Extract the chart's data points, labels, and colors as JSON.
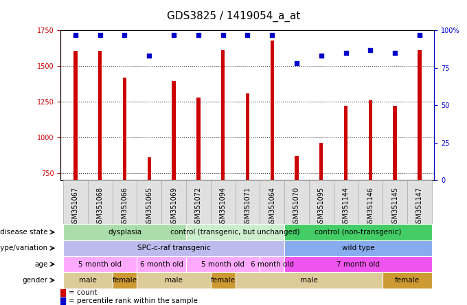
{
  "title": "GDS3825 / 1419054_a_at",
  "samples": [
    "GSM351067",
    "GSM351068",
    "GSM351066",
    "GSM351065",
    "GSM351069",
    "GSM351072",
    "GSM351094",
    "GSM351071",
    "GSM351064",
    "GSM351070",
    "GSM351095",
    "GSM351144",
    "GSM351146",
    "GSM351145",
    "GSM351147"
  ],
  "counts": [
    1608,
    1608,
    1420,
    860,
    1395,
    1280,
    1610,
    1310,
    1680,
    870,
    960,
    1220,
    1260,
    1220,
    1610
  ],
  "percentiles": [
    97,
    97,
    97,
    83,
    97,
    97,
    97,
    97,
    97,
    78,
    83,
    85,
    87,
    85,
    97
  ],
  "ylim_left": [
    700,
    1750
  ],
  "ylim_right": [
    0,
    100
  ],
  "yticks_left": [
    750,
    1000,
    1250,
    1500,
    1750
  ],
  "yticks_right": [
    0,
    25,
    50,
    75,
    100
  ],
  "bar_color": "#cc0000",
  "dot_color": "#0000cc",
  "bar_width": 0.15,
  "annotation_rows": [
    {
      "label": "disease state",
      "segments": [
        {
          "text": "dysplasia",
          "start": 0,
          "end": 5,
          "color": "#aaddaa"
        },
        {
          "text": "control (transgenic, but unchanged)",
          "start": 5,
          "end": 9,
          "color": "#cceecc"
        },
        {
          "text": "control (non-transgenic)",
          "start": 9,
          "end": 15,
          "color": "#44cc66"
        }
      ]
    },
    {
      "label": "genotype/variation",
      "segments": [
        {
          "text": "SPC-c-raf transgenic",
          "start": 0,
          "end": 9,
          "color": "#bbbbee"
        },
        {
          "text": "wild type",
          "start": 9,
          "end": 15,
          "color": "#88aaee"
        }
      ]
    },
    {
      "label": "age",
      "segments": [
        {
          "text": "5 month old",
          "start": 0,
          "end": 3,
          "color": "#ffaaff"
        },
        {
          "text": "6 month old",
          "start": 3,
          "end": 5,
          "color": "#ffaaff"
        },
        {
          "text": "5 month old",
          "start": 5,
          "end": 8,
          "color": "#ffaaff"
        },
        {
          "text": "6 month old",
          "start": 8,
          "end": 9,
          "color": "#ffaaff"
        },
        {
          "text": "7 month old",
          "start": 9,
          "end": 15,
          "color": "#ee55ee"
        }
      ]
    },
    {
      "label": "gender",
      "segments": [
        {
          "text": "male",
          "start": 0,
          "end": 2,
          "color": "#ddcc99"
        },
        {
          "text": "female",
          "start": 2,
          "end": 3,
          "color": "#cc9933"
        },
        {
          "text": "male",
          "start": 3,
          "end": 6,
          "color": "#ddcc99"
        },
        {
          "text": "female",
          "start": 6,
          "end": 7,
          "color": "#cc9933"
        },
        {
          "text": "male",
          "start": 7,
          "end": 13,
          "color": "#ddcc99"
        },
        {
          "text": "female",
          "start": 13,
          "end": 15,
          "color": "#cc9933"
        }
      ]
    }
  ],
  "legend_count_color": "#cc0000",
  "legend_dot_color": "#0000cc",
  "background_color": "#ffffff",
  "plot_bg": "#ffffff",
  "title_fontsize": 11,
  "tick_fontsize": 7,
  "annot_fontsize": 7.5,
  "annot_label_fontsize": 7.5
}
